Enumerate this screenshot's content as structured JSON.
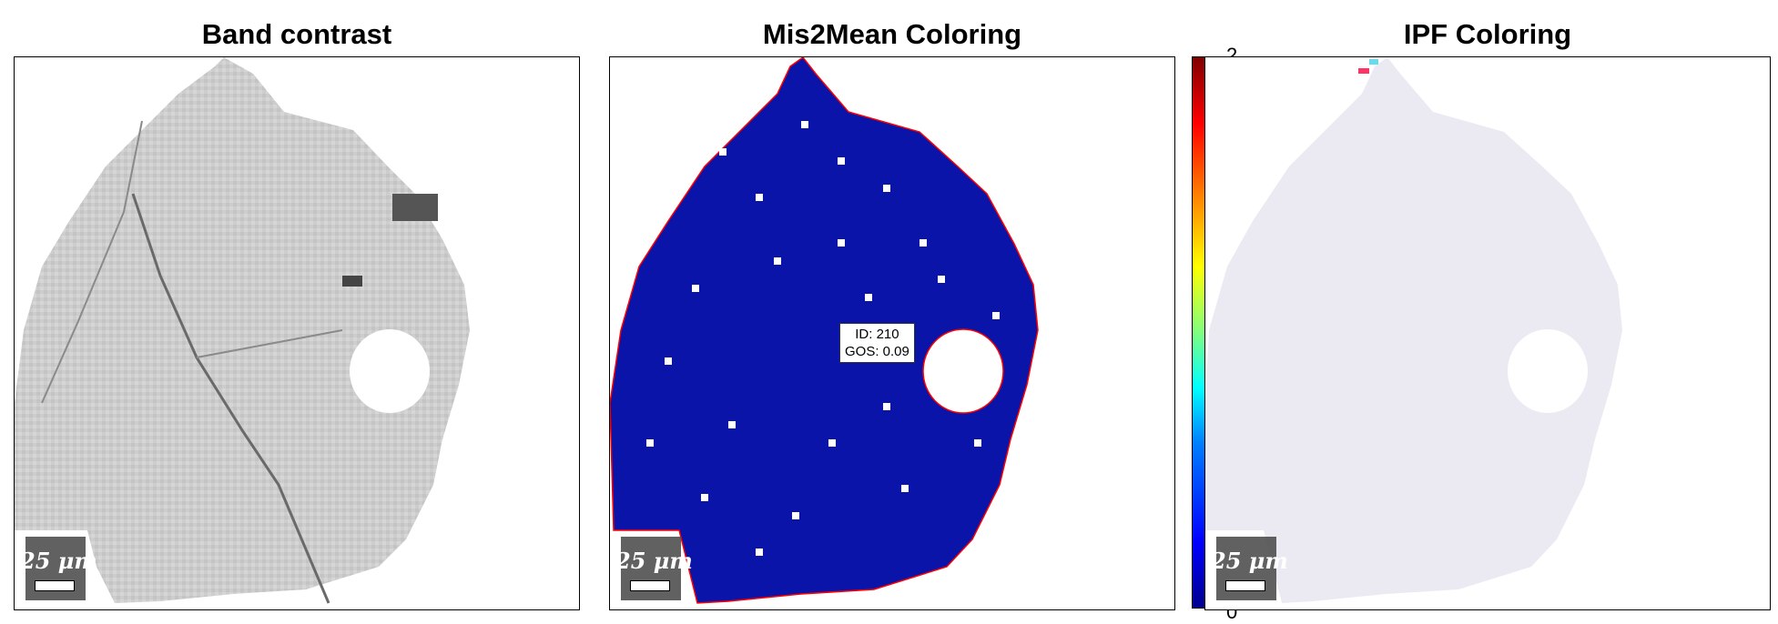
{
  "panels": [
    {
      "title": "Band contrast",
      "scalebar": "25 μm"
    },
    {
      "title": "Mis2Mean Coloring",
      "scalebar": "25 μm"
    },
    {
      "title": "IPF Coloring",
      "scalebar": "25 μm"
    }
  ],
  "colorbar": {
    "max_label": "2",
    "min_label": "0"
  },
  "grain_label": {
    "id": "ID: 210",
    "gos": "GOS: 0.09"
  },
  "colors": {
    "band_contrast_base": "#cfcfcf",
    "mis2mean_base": "#0a14a8",
    "grain_boundary": "#ff0000",
    "ipf_base": "#ebeaf2"
  }
}
